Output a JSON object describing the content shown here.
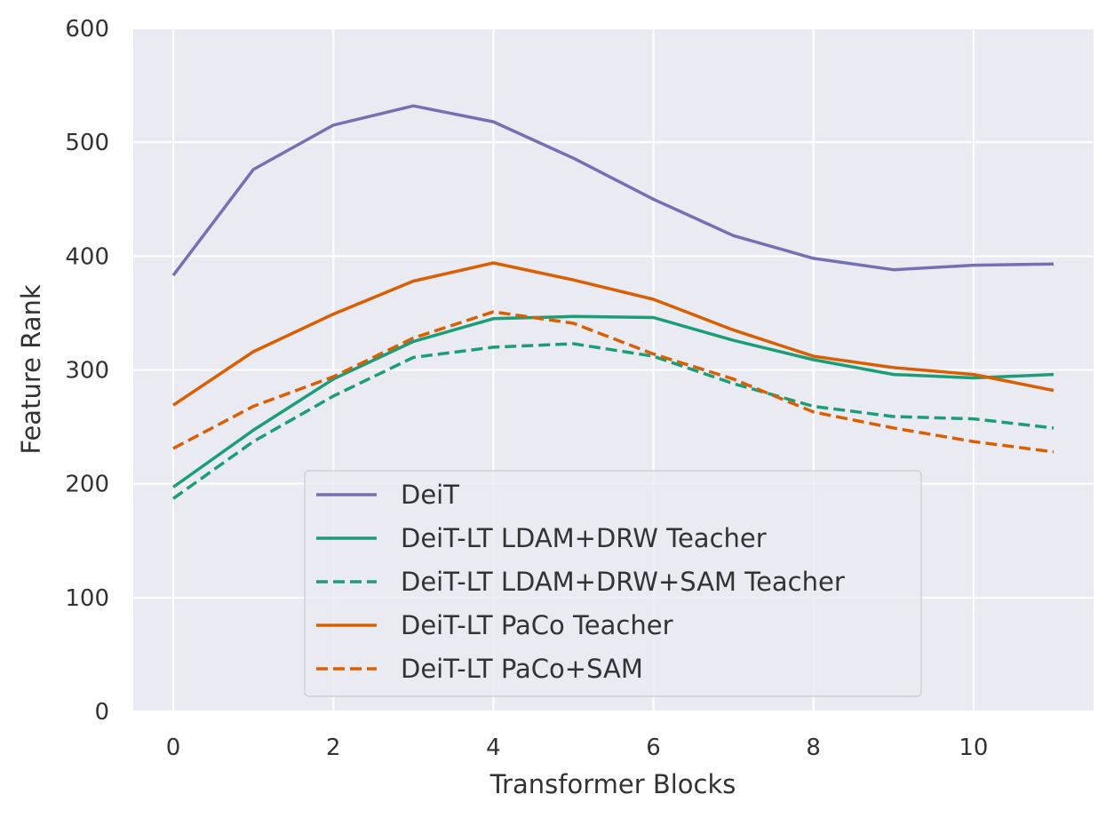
{
  "chart_data": {
    "type": "line",
    "title": "",
    "xlabel": "Transformer Blocks",
    "ylabel": "Feature Rank",
    "xlim": [
      -0.5,
      11.5
    ],
    "ylim": [
      0,
      600
    ],
    "x_ticks": [
      0,
      2,
      4,
      6,
      8,
      10
    ],
    "y_ticks": [
      0,
      100,
      200,
      300,
      400,
      500,
      600
    ],
    "grid": true,
    "legend_position": "lower-center",
    "x": [
      0,
      1,
      2,
      3,
      4,
      5,
      6,
      7,
      8,
      9,
      10,
      11
    ],
    "series": [
      {
        "name": "DeiT",
        "color": "#7570b3",
        "dash": "solid",
        "values": [
          383,
          476,
          515,
          532,
          518,
          486,
          450,
          418,
          398,
          388,
          392,
          393
        ]
      },
      {
        "name": "DeiT-LT LDAM+DRW Teacher",
        "color": "#1b9e77",
        "dash": "solid",
        "values": [
          197,
          247,
          292,
          325,
          345,
          347,
          346,
          326,
          309,
          296,
          293,
          296
        ]
      },
      {
        "name": "DeiT-LT LDAM+DRW+SAM Teacher",
        "color": "#1b9e77",
        "dash": "dashed",
        "values": [
          187,
          237,
          277,
          311,
          320,
          323,
          312,
          288,
          268,
          259,
          257,
          249
        ]
      },
      {
        "name": "DeiT-LT PaCo Teacher",
        "color": "#d95f02",
        "dash": "solid",
        "values": [
          269,
          316,
          349,
          378,
          394,
          379,
          362,
          335,
          312,
          302,
          296,
          282
        ]
      },
      {
        "name": "DeiT-LT PaCo+SAM",
        "color": "#d95f02",
        "dash": "dashed",
        "values": [
          231,
          268,
          294,
          328,
          351,
          341,
          314,
          292,
          263,
          249,
          237,
          228
        ]
      }
    ]
  }
}
